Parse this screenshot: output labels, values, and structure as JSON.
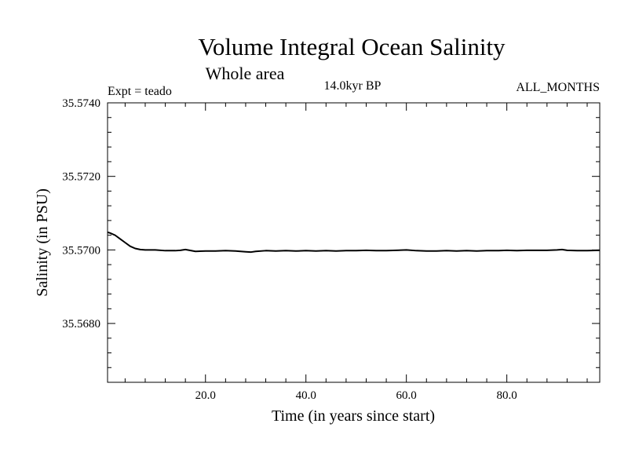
{
  "chart_data": {
    "type": "line",
    "title": "Volume Integral Ocean Salinity",
    "subtitle": "Whole area",
    "experiment": "Expt = teado",
    "period": "14.0kyr BP",
    "months": "ALL_MONTHS",
    "xlabel": "Time (in years since start)",
    "ylabel": "Salinity (in PSU)",
    "xlim": [
      0.5,
      98.5
    ],
    "ylim": [
      35.5664,
      35.574
    ],
    "x_tick_labels": [
      {
        "value": 20,
        "label": "20.0"
      },
      {
        "value": 40,
        "label": "40.0"
      },
      {
        "value": 60,
        "label": "60.0"
      },
      {
        "value": 80,
        "label": "80.0"
      }
    ],
    "y_tick_labels": [
      {
        "value": 35.574,
        "label": "35.5740"
      },
      {
        "value": 35.572,
        "label": "35.5720"
      },
      {
        "value": 35.57,
        "label": "35.5700"
      },
      {
        "value": 35.568,
        "label": "35.5680"
      }
    ],
    "x_minor_step": 4,
    "y_minor_step": 0.0004,
    "series": [
      {
        "name": "salinity",
        "color": "#000000",
        "x": [
          0.5,
          1,
          2,
          3,
          4,
          5,
          6,
          7,
          8,
          10,
          12,
          14,
          15,
          16,
          18,
          20,
          22,
          24,
          26,
          28,
          29,
          30,
          32,
          34,
          36,
          38,
          40,
          42,
          44,
          46,
          48,
          50,
          52,
          54,
          56,
          58,
          60,
          62,
          64,
          66,
          68,
          70,
          72,
          74,
          76,
          78,
          80,
          82,
          84,
          86,
          88,
          90,
          91,
          92,
          94,
          96,
          98.5
        ],
        "values": [
          35.57048,
          35.57046,
          35.5704,
          35.5703,
          35.5702,
          35.5701,
          35.57004,
          35.57001,
          35.57,
          35.57,
          35.56998,
          35.56998,
          35.56999,
          35.57001,
          35.56996,
          35.56997,
          35.56997,
          35.56998,
          35.56997,
          35.56995,
          35.56994,
          35.56996,
          35.56998,
          35.56997,
          35.56998,
          35.56997,
          35.56998,
          35.56997,
          35.56998,
          35.56997,
          35.56998,
          35.56998,
          35.56999,
          35.56998,
          35.56998,
          35.56999,
          35.57,
          35.56998,
          35.56997,
          35.56997,
          35.56998,
          35.56997,
          35.56998,
          35.56997,
          35.56998,
          35.56998,
          35.56999,
          35.56998,
          35.56999,
          35.56999,
          35.56999,
          35.57,
          35.57001,
          35.56999,
          35.56998,
          35.56998,
          35.56999
        ]
      }
    ]
  }
}
